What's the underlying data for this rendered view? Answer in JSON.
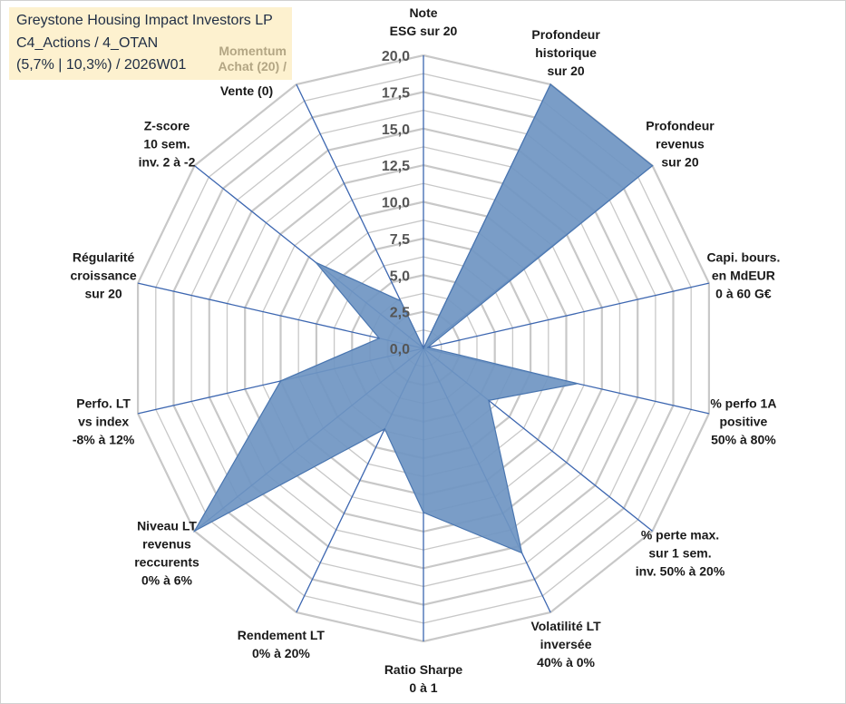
{
  "header": {
    "title": "Greystone Housing Impact Investors LP",
    "line2": "C4_Actions / 4_OTAN",
    "line3": "(5,7% | 10,3%) / 2026W01",
    "momentum_line1": "Momentum",
    "momentum_line2": "Achat (20) /"
  },
  "colors": {
    "fill": "#6f95c2",
    "stroke": "#4a76b0",
    "spoke": "#3c66b0",
    "grid": "#c8c8c8"
  },
  "chart_data": {
    "type": "radar",
    "rmin": 0,
    "rmax": 20,
    "ticks": [
      "0,0",
      "2,5",
      "5,0",
      "7,5",
      "10,0",
      "12,5",
      "15,0",
      "17,5",
      "20,0"
    ],
    "axes": [
      {
        "label": [
          "Note",
          "ESG sur 20"
        ],
        "value": 0
      },
      {
        "label": [
          "Profondeur",
          "historique",
          "sur 20"
        ],
        "value": 20
      },
      {
        "label": [
          "Profondeur",
          "revenus",
          "sur 20"
        ],
        "value": 20
      },
      {
        "label": [
          "Capi. bours.",
          "en MdEUR",
          "0 à 60 G€"
        ],
        "value": 0.3
      },
      {
        "label": [
          "% perfo 1A",
          "positive",
          "50% à 80%"
        ],
        "value": 10.8
      },
      {
        "label": [
          "% perte max.",
          "sur 1 sem.",
          "inv. 50% à 20%"
        ],
        "value": 5.7
      },
      {
        "label": [
          "Volatilité LT",
          "inversée",
          "40% à 0%"
        ],
        "value": 15.5
      },
      {
        "label": [
          "Ratio Sharpe",
          "0 à 1"
        ],
        "value": 11.2
      },
      {
        "label": [
          "Rendement LT",
          "0% à 20%"
        ],
        "value": 6.1
      },
      {
        "label": [
          "Niveau LT",
          "revenus",
          "reccurents",
          "0% à 6%"
        ],
        "value": 20
      },
      {
        "label": [
          "Perfo. LT",
          "vs index",
          "-8% à 12%"
        ],
        "value": 10
      },
      {
        "label": [
          "Régularité",
          "croissance",
          "sur 20"
        ],
        "value": 3.1
      },
      {
        "label": [
          "Z-score",
          "10 sem.",
          "inv. 2 à -2"
        ],
        "value": 9.4
      },
      {
        "label": [
          "Vente (0)"
        ],
        "value": 3.6
      }
    ]
  }
}
